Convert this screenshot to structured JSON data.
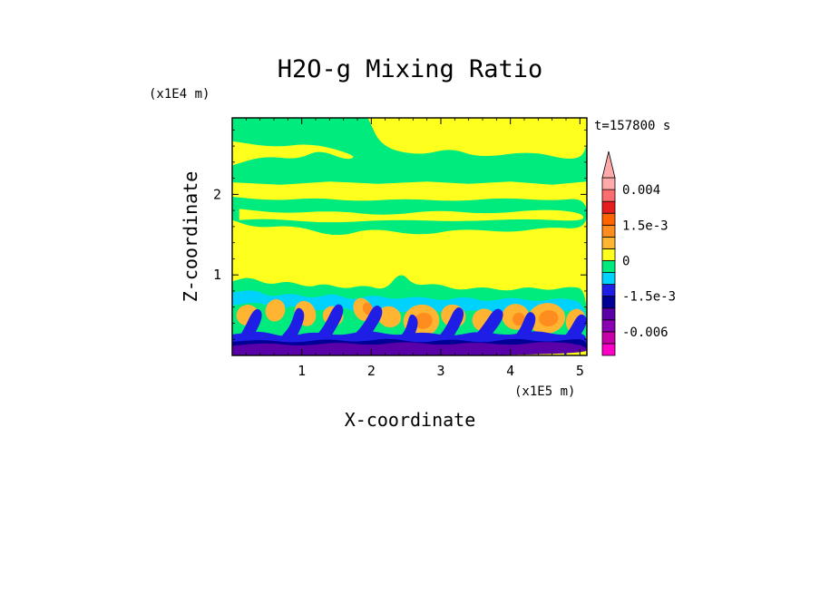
{
  "chart_data": {
    "type": "heatmap",
    "title": "H2O-g Mixing Ratio",
    "xlabel": "X-coordinate",
    "ylabel": "Z-coordinate",
    "x_unit": "(x1E5 m)",
    "y_unit": "(x1E4 m)",
    "time_label": "t=157800 s",
    "xlim": [
      0,
      5.1
    ],
    "ylim": [
      0,
      2.95
    ],
    "x_ticks": [
      1,
      2,
      3,
      4,
      5
    ],
    "y_ticks": [
      1,
      2
    ],
    "colorbar": {
      "levels": [
        -0.009,
        -0.0075,
        -0.006,
        -0.0045,
        -0.003,
        -0.0015,
        -0.001,
        -0.0005,
        0,
        0.0005,
        0.001,
        0.0015,
        0.002,
        0.003,
        0.004,
        0.006
      ],
      "colors": [
        "#ff00c8",
        "#c800a8",
        "#8c00b4",
        "#5a00a8",
        "#000096",
        "#1e1ee6",
        "#00d2ff",
        "#00eb7d",
        "#ffff1e",
        "#ffb432",
        "#ff8c1e",
        "#ff6400",
        "#e61e1e",
        "#ff6e6e",
        "#ffaaaa"
      ],
      "labels": [
        {
          "text": "0.004",
          "value": 0.004
        },
        {
          "text": "1.5e-3",
          "value": 0.0015
        },
        {
          "text": "0",
          "value": 0
        },
        {
          "text": "-1.5e-3",
          "value": -0.0015
        },
        {
          "text": "-0.006",
          "value": -0.006
        }
      ],
      "extend": "max"
    },
    "field_description": "Water vapor perturbation mixing ratio over x = 0-5.1e5 m and z = 0-2.95e4 m; layered zero/near-zero values aloft, strong moist and dry perturbation plumes in the lowest 0.7e4 m."
  },
  "colors": {
    "background": "#ffffff",
    "text": "#000000",
    "frame": "#000000"
  }
}
